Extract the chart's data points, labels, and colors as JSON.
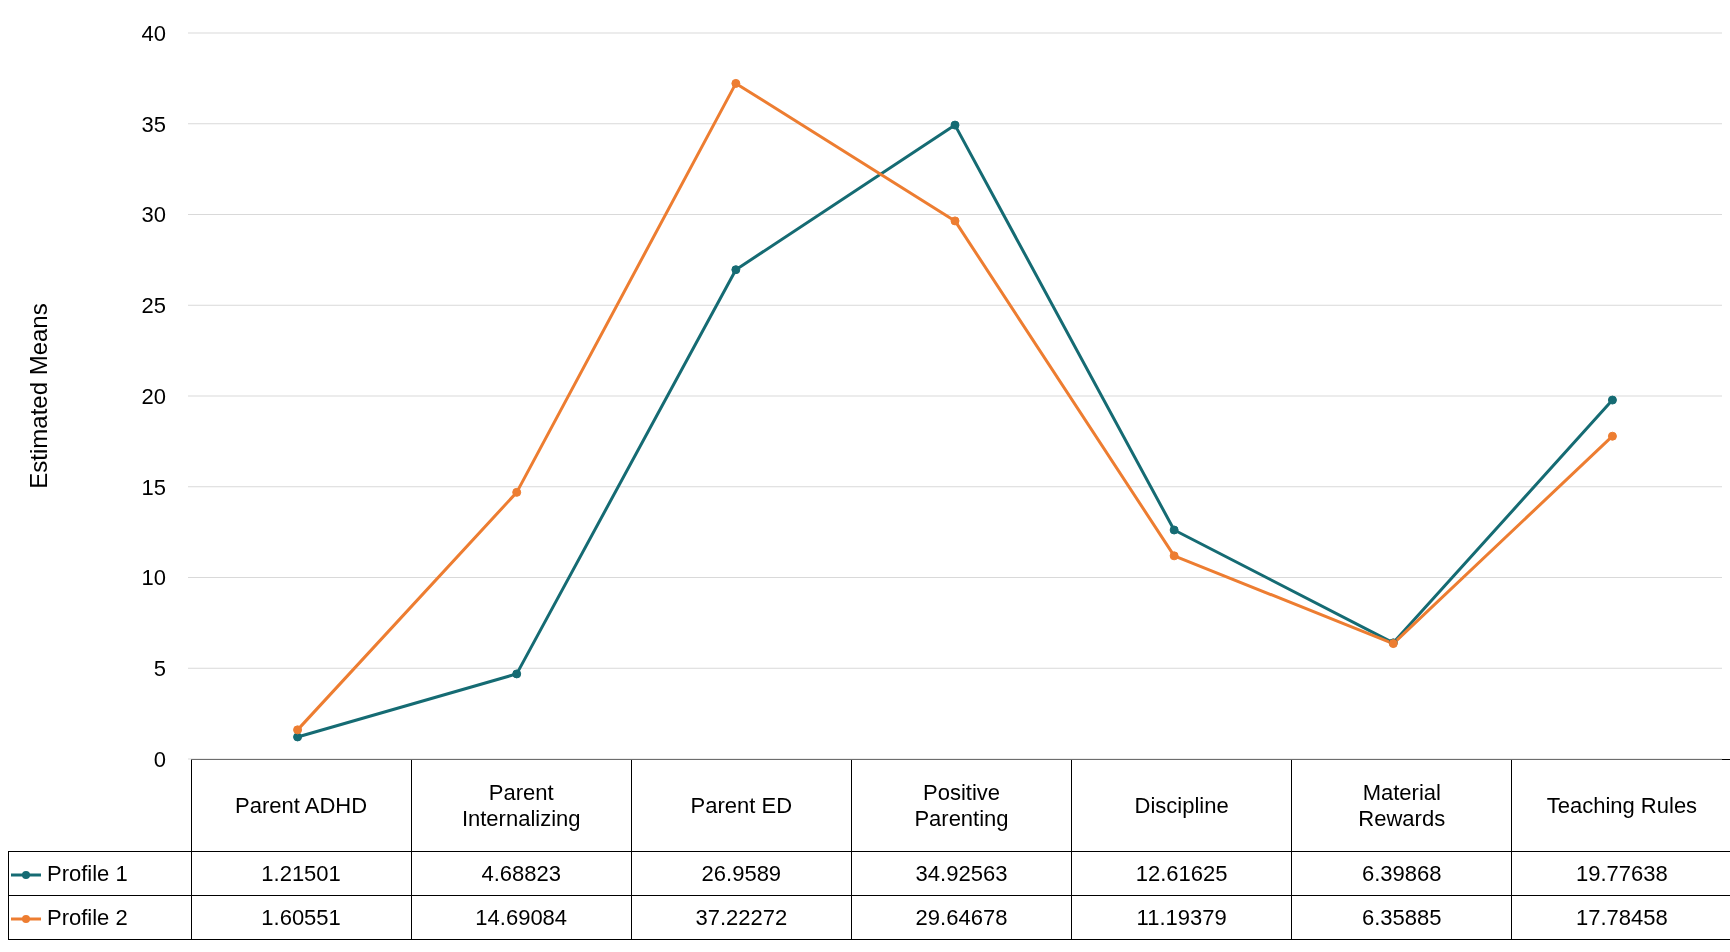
{
  "chart_data": {
    "type": "line",
    "ylabel": "Estimated Means",
    "categories": [
      "Parent ADHD",
      "Parent Internalizing",
      "Parent ED",
      "Positive Parenting",
      "Discipline",
      "Material Rewards",
      "Teaching Rules"
    ],
    "series": [
      {
        "name": "Profile 1",
        "color": "#156b73",
        "values": [
          1.21501,
          4.68823,
          26.9589,
          34.92563,
          12.61625,
          6.39868,
          19.77638
        ]
      },
      {
        "name": "Profile 2",
        "color": "#ed7d31",
        "values": [
          1.60551,
          14.69084,
          37.22272,
          29.64678,
          11.19379,
          6.35885,
          17.78458
        ]
      }
    ],
    "ylim": [
      0,
      40
    ],
    "yticks": [
      0,
      5,
      10,
      15,
      20,
      25,
      30,
      35,
      40
    ],
    "grid": "y",
    "legend": "bottom",
    "marker": "circle",
    "line_style": "solid",
    "data_labels": true
  }
}
